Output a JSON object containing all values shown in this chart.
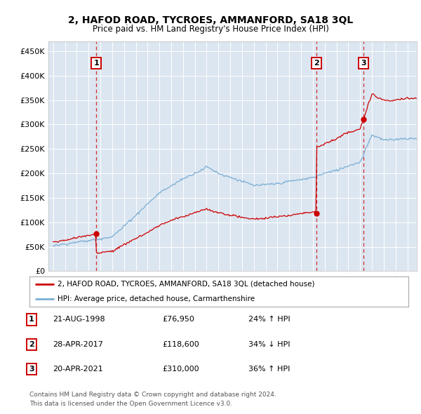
{
  "title": "2, HAFOD ROAD, TYCROES, AMMANFORD, SA18 3QL",
  "subtitle": "Price paid vs. HM Land Registry's House Price Index (HPI)",
  "bg_color": "#dce6f0",
  "ylim": [
    0,
    470000
  ],
  "yticks": [
    0,
    50000,
    100000,
    150000,
    200000,
    250000,
    300000,
    350000,
    400000,
    450000
  ],
  "ytick_labels": [
    "£0",
    "£50K",
    "£100K",
    "£150K",
    "£200K",
    "£250K",
    "£300K",
    "£350K",
    "£400K",
    "£450K"
  ],
  "xlim_start": 1994.6,
  "xlim_end": 2025.8,
  "red_line_color": "#cc0000",
  "blue_line_color": "#7bafd4",
  "sale_years": [
    1998.646,
    2017.327,
    2021.307
  ],
  "sale_prices": [
    76950,
    118600,
    310000
  ],
  "sale_labels": [
    "1",
    "2",
    "3"
  ],
  "legend_red_label": "2, HAFOD ROAD, TYCROES, AMMANFORD, SA18 3QL (detached house)",
  "legend_blue_label": "HPI: Average price, detached house, Carmarthenshire",
  "footer_line1": "Contains HM Land Registry data © Crown copyright and database right 2024.",
  "footer_line2": "This data is licensed under the Open Government Licence v3.0.",
  "table_entries": [
    {
      "num": "1",
      "date": "21-AUG-1998",
      "price": "£76,950",
      "pct": "24% ↑ HPI"
    },
    {
      "num": "2",
      "date": "28-APR-2017",
      "price": "£118,600",
      "pct": "34% ↓ HPI"
    },
    {
      "num": "3",
      "date": "20-APR-2021",
      "price": "£310,000",
      "pct": "36% ↑ HPI"
    }
  ]
}
